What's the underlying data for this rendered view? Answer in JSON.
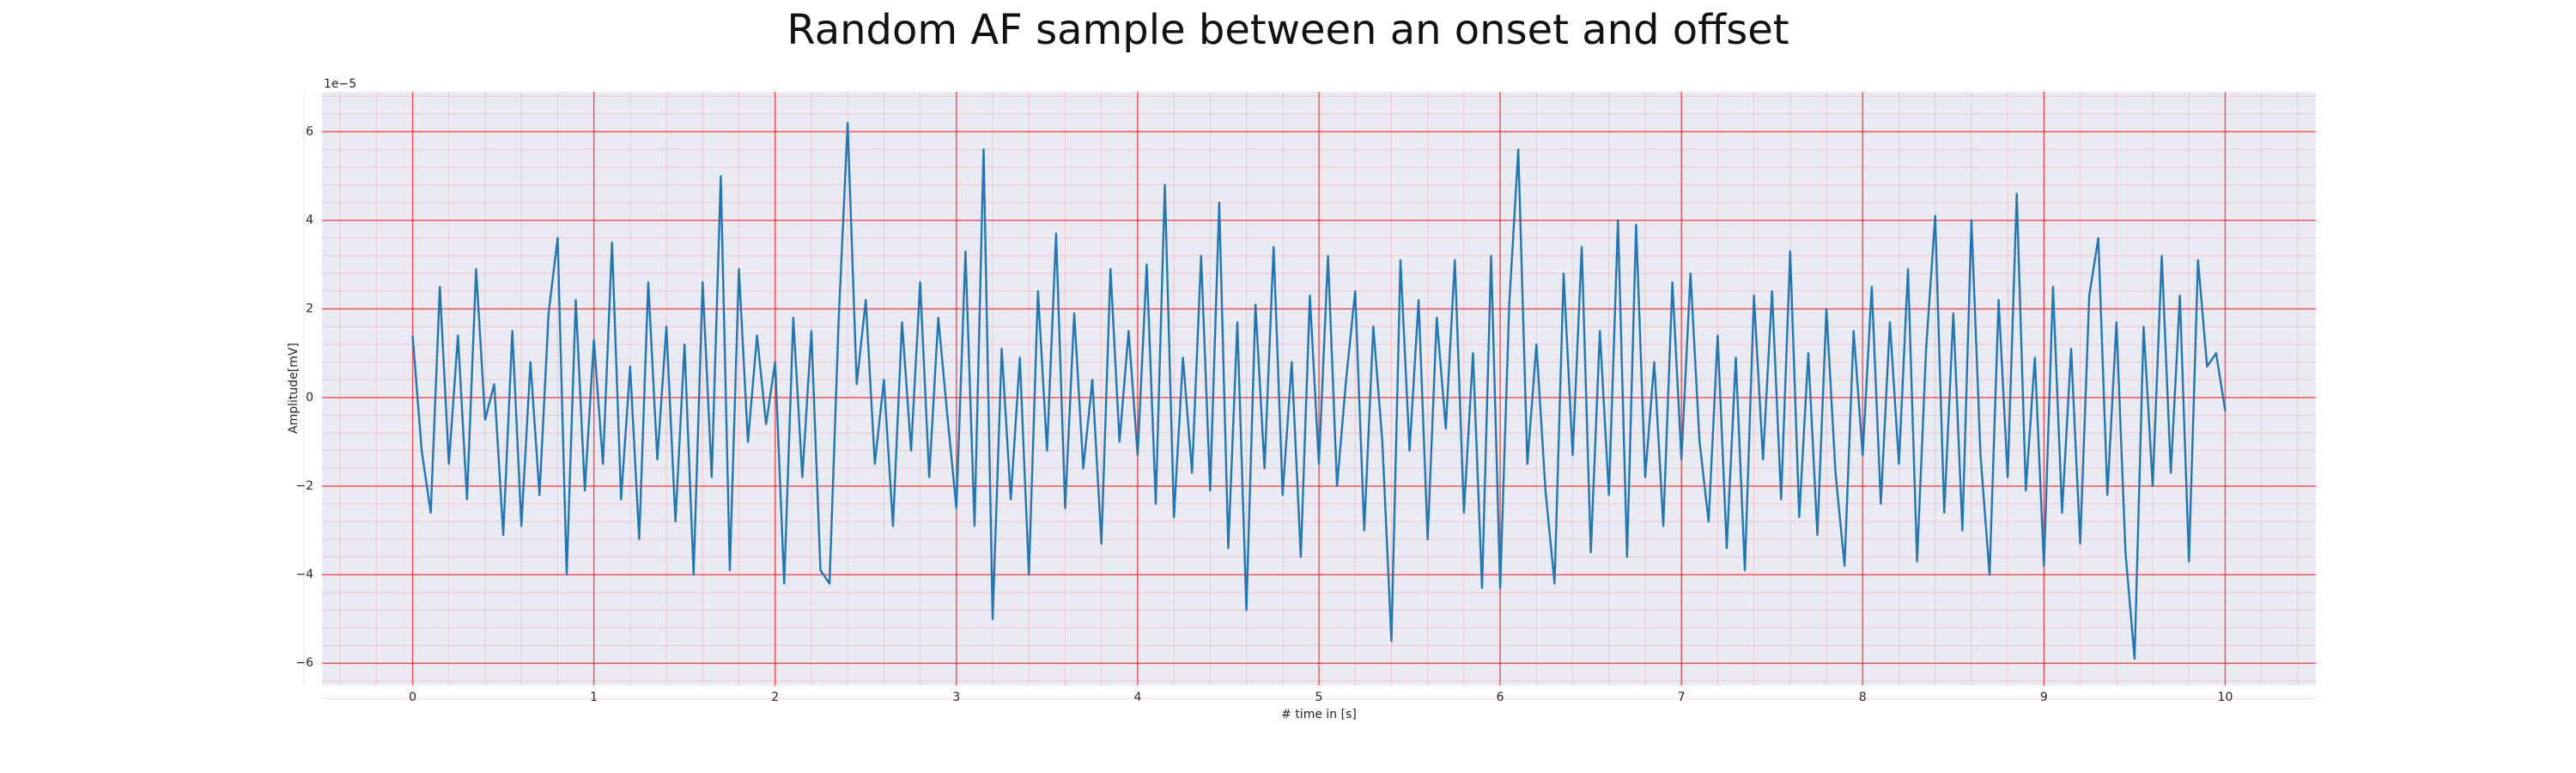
{
  "chart_data": {
    "type": "line",
    "title": "Random AF sample between an onset and offset",
    "xlabel": "# time in [s]",
    "ylabel": "Amplitude[mV]",
    "y_offset_label": "1e−5",
    "color": "#1f77b4",
    "grid": true,
    "grid_color": "#ff0000",
    "minor_grid": true,
    "xlim": [
      -0.5,
      10.5
    ],
    "ylim": [
      -6.5,
      6.9
    ],
    "xticks": [
      0,
      1,
      2,
      3,
      4,
      5,
      6,
      7,
      8,
      9,
      10
    ],
    "yticks": [
      {
        "value": -6,
        "label": "−6"
      },
      {
        "value": -4,
        "label": "−4"
      },
      {
        "value": -2,
        "label": "−2"
      },
      0,
      2,
      4,
      6
    ],
    "x": [
      0,
      0.05,
      0.1,
      0.15,
      0.2,
      0.25,
      0.3,
      0.35,
      0.4,
      0.45,
      0.5,
      0.55,
      0.6,
      0.65,
      0.7,
      0.75,
      0.8,
      0.85,
      0.9,
      0.95,
      1,
      1.05,
      1.1,
      1.15,
      1.2,
      1.25,
      1.3,
      1.35,
      1.4,
      1.45,
      1.5,
      1.55,
      1.6,
      1.65,
      1.7,
      1.75,
      1.8,
      1.85,
      1.9,
      1.95,
      2,
      2.05,
      2.1,
      2.15,
      2.2,
      2.25,
      2.3,
      2.35,
      2.4,
      2.45,
      2.5,
      2.55,
      2.6,
      2.65,
      2.7,
      2.75,
      2.8,
      2.85,
      2.9,
      2.95,
      3,
      3.05,
      3.1,
      3.15,
      3.2,
      3.25,
      3.3,
      3.35,
      3.4,
      3.45,
      3.5,
      3.55,
      3.6,
      3.65,
      3.7,
      3.75,
      3.8,
      3.85,
      3.9,
      3.95,
      4,
      4.05,
      4.1,
      4.15,
      4.2,
      4.25,
      4.3,
      4.35,
      4.4,
      4.45,
      4.5,
      4.55,
      4.6,
      4.65,
      4.7,
      4.75,
      4.8,
      4.85,
      4.9,
      4.95,
      5,
      5.05,
      5.1,
      5.15,
      5.2,
      5.25,
      5.3,
      5.35,
      5.4,
      5.45,
      5.5,
      5.55,
      5.6,
      5.65,
      5.7,
      5.75,
      5.8,
      5.85,
      5.9,
      5.95,
      6,
      6.05,
      6.1,
      6.15,
      6.2,
      6.25,
      6.3,
      6.35,
      6.4,
      6.45,
      6.5,
      6.55,
      6.6,
      6.65,
      6.7,
      6.75,
      6.8,
      6.85,
      6.9,
      6.95,
      7,
      7.05,
      7.1,
      7.15,
      7.2,
      7.25,
      7.3,
      7.35,
      7.4,
      7.45,
      7.5,
      7.55,
      7.6,
      7.65,
      7.7,
      7.75,
      7.8,
      7.85,
      7.9,
      7.95,
      8,
      8.05,
      8.1,
      8.15,
      8.2,
      8.25,
      8.3,
      8.35,
      8.4,
      8.45,
      8.5,
      8.55,
      8.6,
      8.65,
      8.7,
      8.75,
      8.8,
      8.85,
      8.9,
      8.95,
      9,
      9.05,
      9.1,
      9.15,
      9.2,
      9.25,
      9.3,
      9.35,
      9.4,
      9.45,
      9.5,
      9.55,
      9.6,
      9.65,
      9.7,
      9.75,
      9.8,
      9.85,
      9.9,
      9.95,
      10
    ],
    "values": [
      1.4,
      -1.2,
      -2.6,
      2.5,
      -1.5,
      1.4,
      -2.3,
      2.9,
      -0.5,
      0.3,
      -3.1,
      1.5,
      -2.9,
      0.8,
      -2.2,
      1.9,
      3.6,
      -4.0,
      2.2,
      -2.1,
      1.3,
      -1.5,
      3.5,
      -2.3,
      0.7,
      -3.2,
      2.6,
      -1.4,
      1.6,
      -2.8,
      1.2,
      -4.0,
      2.6,
      -1.8,
      5.0,
      -3.9,
      2.9,
      -1.0,
      1.4,
      -0.6,
      0.8,
      -4.2,
      1.8,
      -1.8,
      1.5,
      -3.9,
      -4.2,
      1.7,
      6.2,
      0.3,
      2.2,
      -1.5,
      0.4,
      -2.9,
      1.7,
      -1.2,
      2.6,
      -1.8,
      1.8,
      -0.4,
      -2.5,
      3.3,
      -2.9,
      5.6,
      -5.0,
      1.1,
      -2.3,
      0.9,
      -4.0,
      2.4,
      -1.2,
      3.7,
      -2.5,
      1.9,
      -1.6,
      0.4,
      -3.3,
      2.9,
      -1.0,
      1.5,
      -1.3,
      3.0,
      -2.4,
      4.8,
      -2.7,
      0.9,
      -1.7,
      3.2,
      -2.1,
      4.4,
      -3.4,
      1.7,
      -4.8,
      2.1,
      -1.6,
      3.4,
      -2.2,
      0.8,
      -3.6,
      2.3,
      -1.5,
      3.2,
      -2.0,
      0.4,
      2.4,
      -3.0,
      1.6,
      -1.0,
      -5.5,
      3.1,
      -1.2,
      2.2,
      -3.2,
      1.8,
      -0.7,
      3.1,
      -2.6,
      1.0,
      -4.3,
      3.2,
      -4.3,
      2.1,
      5.6,
      -1.5,
      1.2,
      -2.1,
      -4.2,
      2.8,
      -1.3,
      3.4,
      -3.5,
      1.5,
      -2.2,
      4.0,
      -3.6,
      3.9,
      -1.8,
      0.8,
      -2.9,
      2.6,
      -1.4,
      2.8,
      -1.0,
      -2.8,
      1.4,
      -3.4,
      0.9,
      -3.9,
      2.3,
      -1.4,
      2.4,
      -2.3,
      3.3,
      -2.7,
      1.0,
      -3.1,
      2.0,
      -1.7,
      -3.8,
      1.5,
      -1.3,
      2.5,
      -2.4,
      1.7,
      -1.5,
      2.9,
      -3.7,
      1.1,
      4.1,
      -2.6,
      1.9,
      -3.0,
      4.0,
      -1.3,
      -4.0,
      2.2,
      -1.8,
      4.6,
      -2.1,
      0.9,
      -3.8,
      2.5,
      -2.6,
      1.1,
      -3.3,
      2.3,
      3.6,
      -2.2,
      1.7,
      -3.5,
      -5.9,
      1.6,
      -2.0,
      3.2,
      -1.7,
      2.3,
      -3.7,
      3.1,
      0.7,
      1.0,
      -0.3
    ]
  }
}
